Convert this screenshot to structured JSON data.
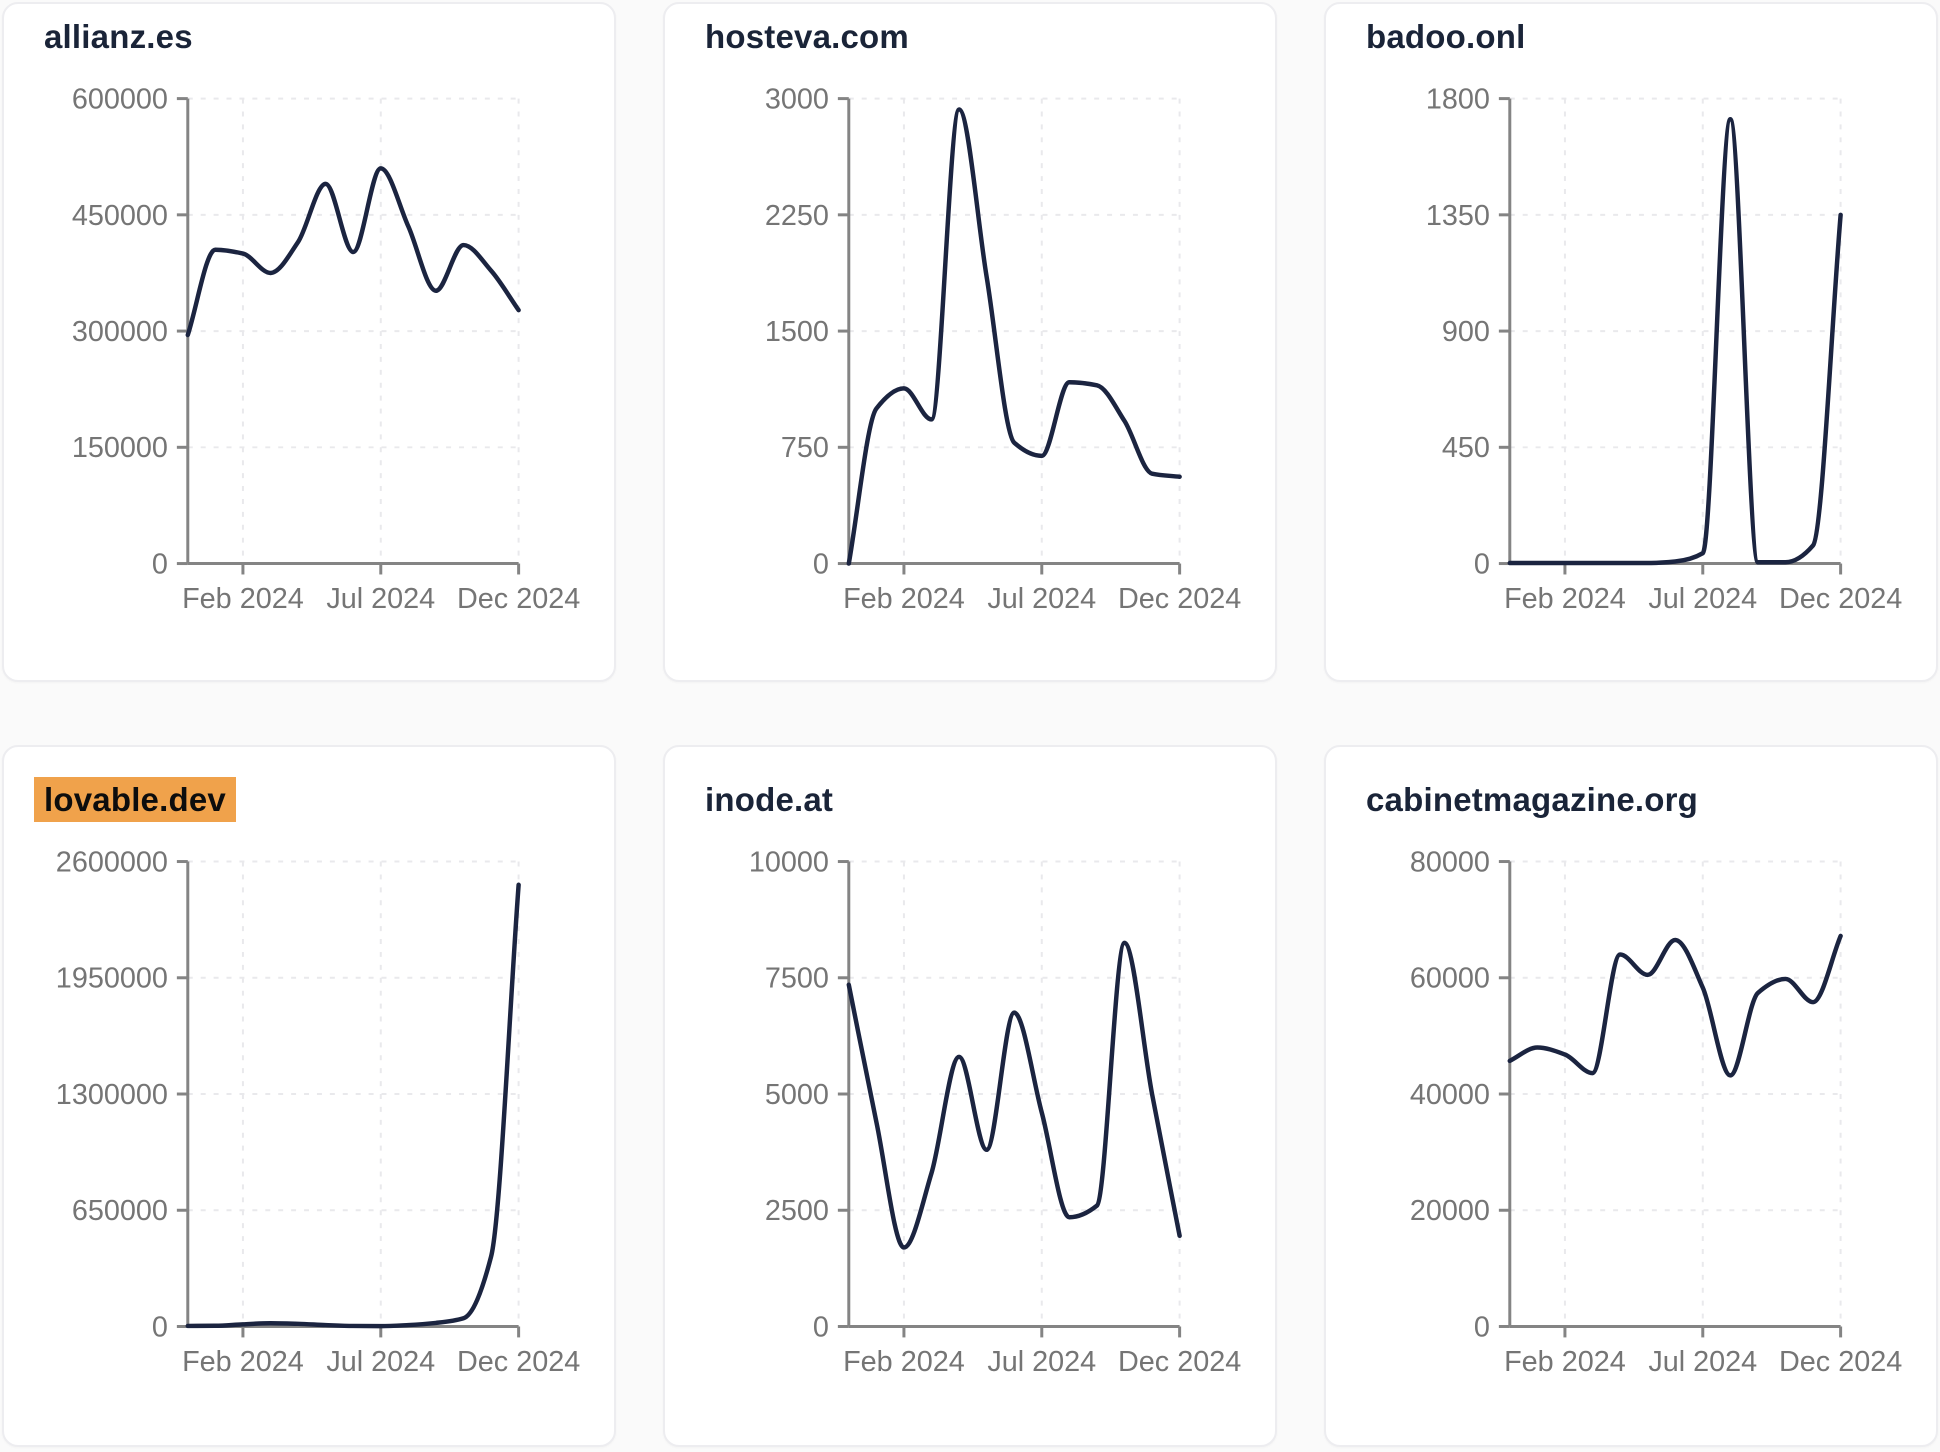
{
  "style": {
    "page_background": "#fafafa",
    "card_background": "#ffffff",
    "card_border": "#ededf0",
    "title_color": "#1a2438",
    "title_highlight_color": "#f0a24b",
    "line_color": "#1b2440",
    "axis_color": "#848484",
    "grid_color": "#e9e9ec",
    "tick_label_color": "#757575"
  },
  "x_axis": {
    "tick_labels": [
      "Feb 2024",
      "Jul 2024",
      "Dec 2024"
    ],
    "tick_indices": [
      2,
      7,
      12
    ]
  },
  "chart_data": [
    {
      "type": "line",
      "title": "allianz.es",
      "title_highlighted": false,
      "row": 1,
      "x": [
        "Dec 2023",
        "Jan 2024",
        "Feb 2024",
        "Mar 2024",
        "Apr 2024",
        "May 2024",
        "Jun 2024",
        "Jul 2024",
        "Aug 2024",
        "Sep 2024",
        "Oct 2024",
        "Nov 2024",
        "Dec 2024"
      ],
      "x_tick_labels": [
        "Feb 2024",
        "Jul 2024",
        "Dec 2024"
      ],
      "values": [
        295000,
        405000,
        400000,
        375000,
        415000,
        490000,
        402000,
        510000,
        435000,
        352000,
        411000,
        378000,
        327000
      ],
      "y_ticks": [
        0,
        150000,
        300000,
        450000,
        600000
      ],
      "y_tick_labels": [
        "0",
        "150000",
        "300000",
        "450000",
        "600000"
      ],
      "ylim": [
        0,
        600000
      ],
      "grid": true,
      "legend": null
    },
    {
      "type": "line",
      "title": "hosteva.com",
      "title_highlighted": false,
      "row": 1,
      "x": [
        "Dec 2023",
        "Jan 2024",
        "Feb 2024",
        "Mar 2024",
        "Apr 2024",
        "May 2024",
        "Jun 2024",
        "Jul 2024",
        "Aug 2024",
        "Sep 2024",
        "Oct 2024",
        "Nov 2024",
        "Dec 2024"
      ],
      "x_tick_labels": [
        "Feb 2024",
        "Jul 2024",
        "Dec 2024"
      ],
      "values": [
        0,
        1000,
        1130,
        930,
        2930,
        1850,
        780,
        695,
        1170,
        1150,
        920,
        580,
        560
      ],
      "y_ticks": [
        0,
        750,
        1500,
        2250,
        3000
      ],
      "y_tick_labels": [
        "0",
        "750",
        "1500",
        "2250",
        "3000"
      ],
      "ylim": [
        0,
        3000
      ],
      "grid": true,
      "legend": null
    },
    {
      "type": "line",
      "title": "badoo.onl",
      "title_highlighted": false,
      "row": 1,
      "x": [
        "Dec 2023",
        "Jan 2024",
        "Feb 2024",
        "Mar 2024",
        "Apr 2024",
        "May 2024",
        "Jun 2024",
        "Jul 2024",
        "Aug 2024",
        "Sep 2024",
        "Oct 2024",
        "Nov 2024",
        "Dec 2024"
      ],
      "x_tick_labels": [
        "Feb 2024",
        "Jul 2024",
        "Dec 2024"
      ],
      "values": [
        2,
        2,
        2,
        2,
        2,
        2,
        8,
        40,
        1720,
        5,
        5,
        70,
        1350
      ],
      "y_ticks": [
        0,
        450,
        900,
        1350,
        1800
      ],
      "y_tick_labels": [
        "0",
        "450",
        "900",
        "1350",
        "1800"
      ],
      "ylim": [
        0,
        1800
      ],
      "grid": true,
      "legend": null
    },
    {
      "type": "line",
      "title": "lovable.dev",
      "title_highlighted": true,
      "row": 2,
      "x": [
        "Dec 2023",
        "Jan 2024",
        "Feb 2024",
        "Mar 2024",
        "Apr 2024",
        "May 2024",
        "Jun 2024",
        "Jul 2024",
        "Aug 2024",
        "Sep 2024",
        "Oct 2024",
        "Nov 2024",
        "Dec 2024"
      ],
      "x_tick_labels": [
        "Feb 2024",
        "Jul 2024",
        "Dec 2024"
      ],
      "values": [
        3000,
        4000,
        12000,
        18000,
        15000,
        8000,
        3000,
        2000,
        8000,
        20000,
        46000,
        390000,
        2470000
      ],
      "y_ticks": [
        0,
        650000,
        1300000,
        1950000,
        2600000
      ],
      "y_tick_labels": [
        "0",
        "650000",
        "1300000",
        "1950000",
        "2600000"
      ],
      "ylim": [
        0,
        2600000
      ],
      "grid": true,
      "legend": null
    },
    {
      "type": "line",
      "title": "inode.at",
      "title_highlighted": false,
      "row": 2,
      "x": [
        "Dec 2023",
        "Jan 2024",
        "Feb 2024",
        "Mar 2024",
        "Apr 2024",
        "May 2024",
        "Jun 2024",
        "Jul 2024",
        "Aug 2024",
        "Sep 2024",
        "Oct 2024",
        "Nov 2024",
        "Dec 2024"
      ],
      "x_tick_labels": [
        "Feb 2024",
        "Jul 2024",
        "Dec 2024"
      ],
      "values": [
        7350,
        4400,
        1700,
        3300,
        5800,
        3800,
        6750,
        4600,
        2350,
        2600,
        8250,
        5000,
        1950
      ],
      "y_ticks": [
        0,
        2500,
        5000,
        7500,
        10000
      ],
      "y_tick_labels": [
        "0",
        "2500",
        "5000",
        "7500",
        "10000"
      ],
      "ylim": [
        0,
        10000
      ],
      "grid": true,
      "legend": null
    },
    {
      "type": "line",
      "title": "cabinetmagazine.org",
      "title_highlighted": false,
      "row": 2,
      "x": [
        "Dec 2023",
        "Jan 2024",
        "Feb 2024",
        "Mar 2024",
        "Apr 2024",
        "May 2024",
        "Jun 2024",
        "Jul 2024",
        "Aug 2024",
        "Sep 2024",
        "Oct 2024",
        "Nov 2024",
        "Dec 2024"
      ],
      "x_tick_labels": [
        "Feb 2024",
        "Jul 2024",
        "Dec 2024"
      ],
      "values": [
        45700,
        48000,
        46800,
        43600,
        64000,
        60500,
        66500,
        58300,
        43200,
        57400,
        59800,
        55800,
        67200
      ],
      "y_ticks": [
        0,
        20000,
        40000,
        60000,
        80000
      ],
      "y_tick_labels": [
        "0",
        "20000",
        "40000",
        "60000",
        "80000"
      ],
      "ylim": [
        0,
        80000
      ],
      "grid": true,
      "legend": null
    }
  ]
}
